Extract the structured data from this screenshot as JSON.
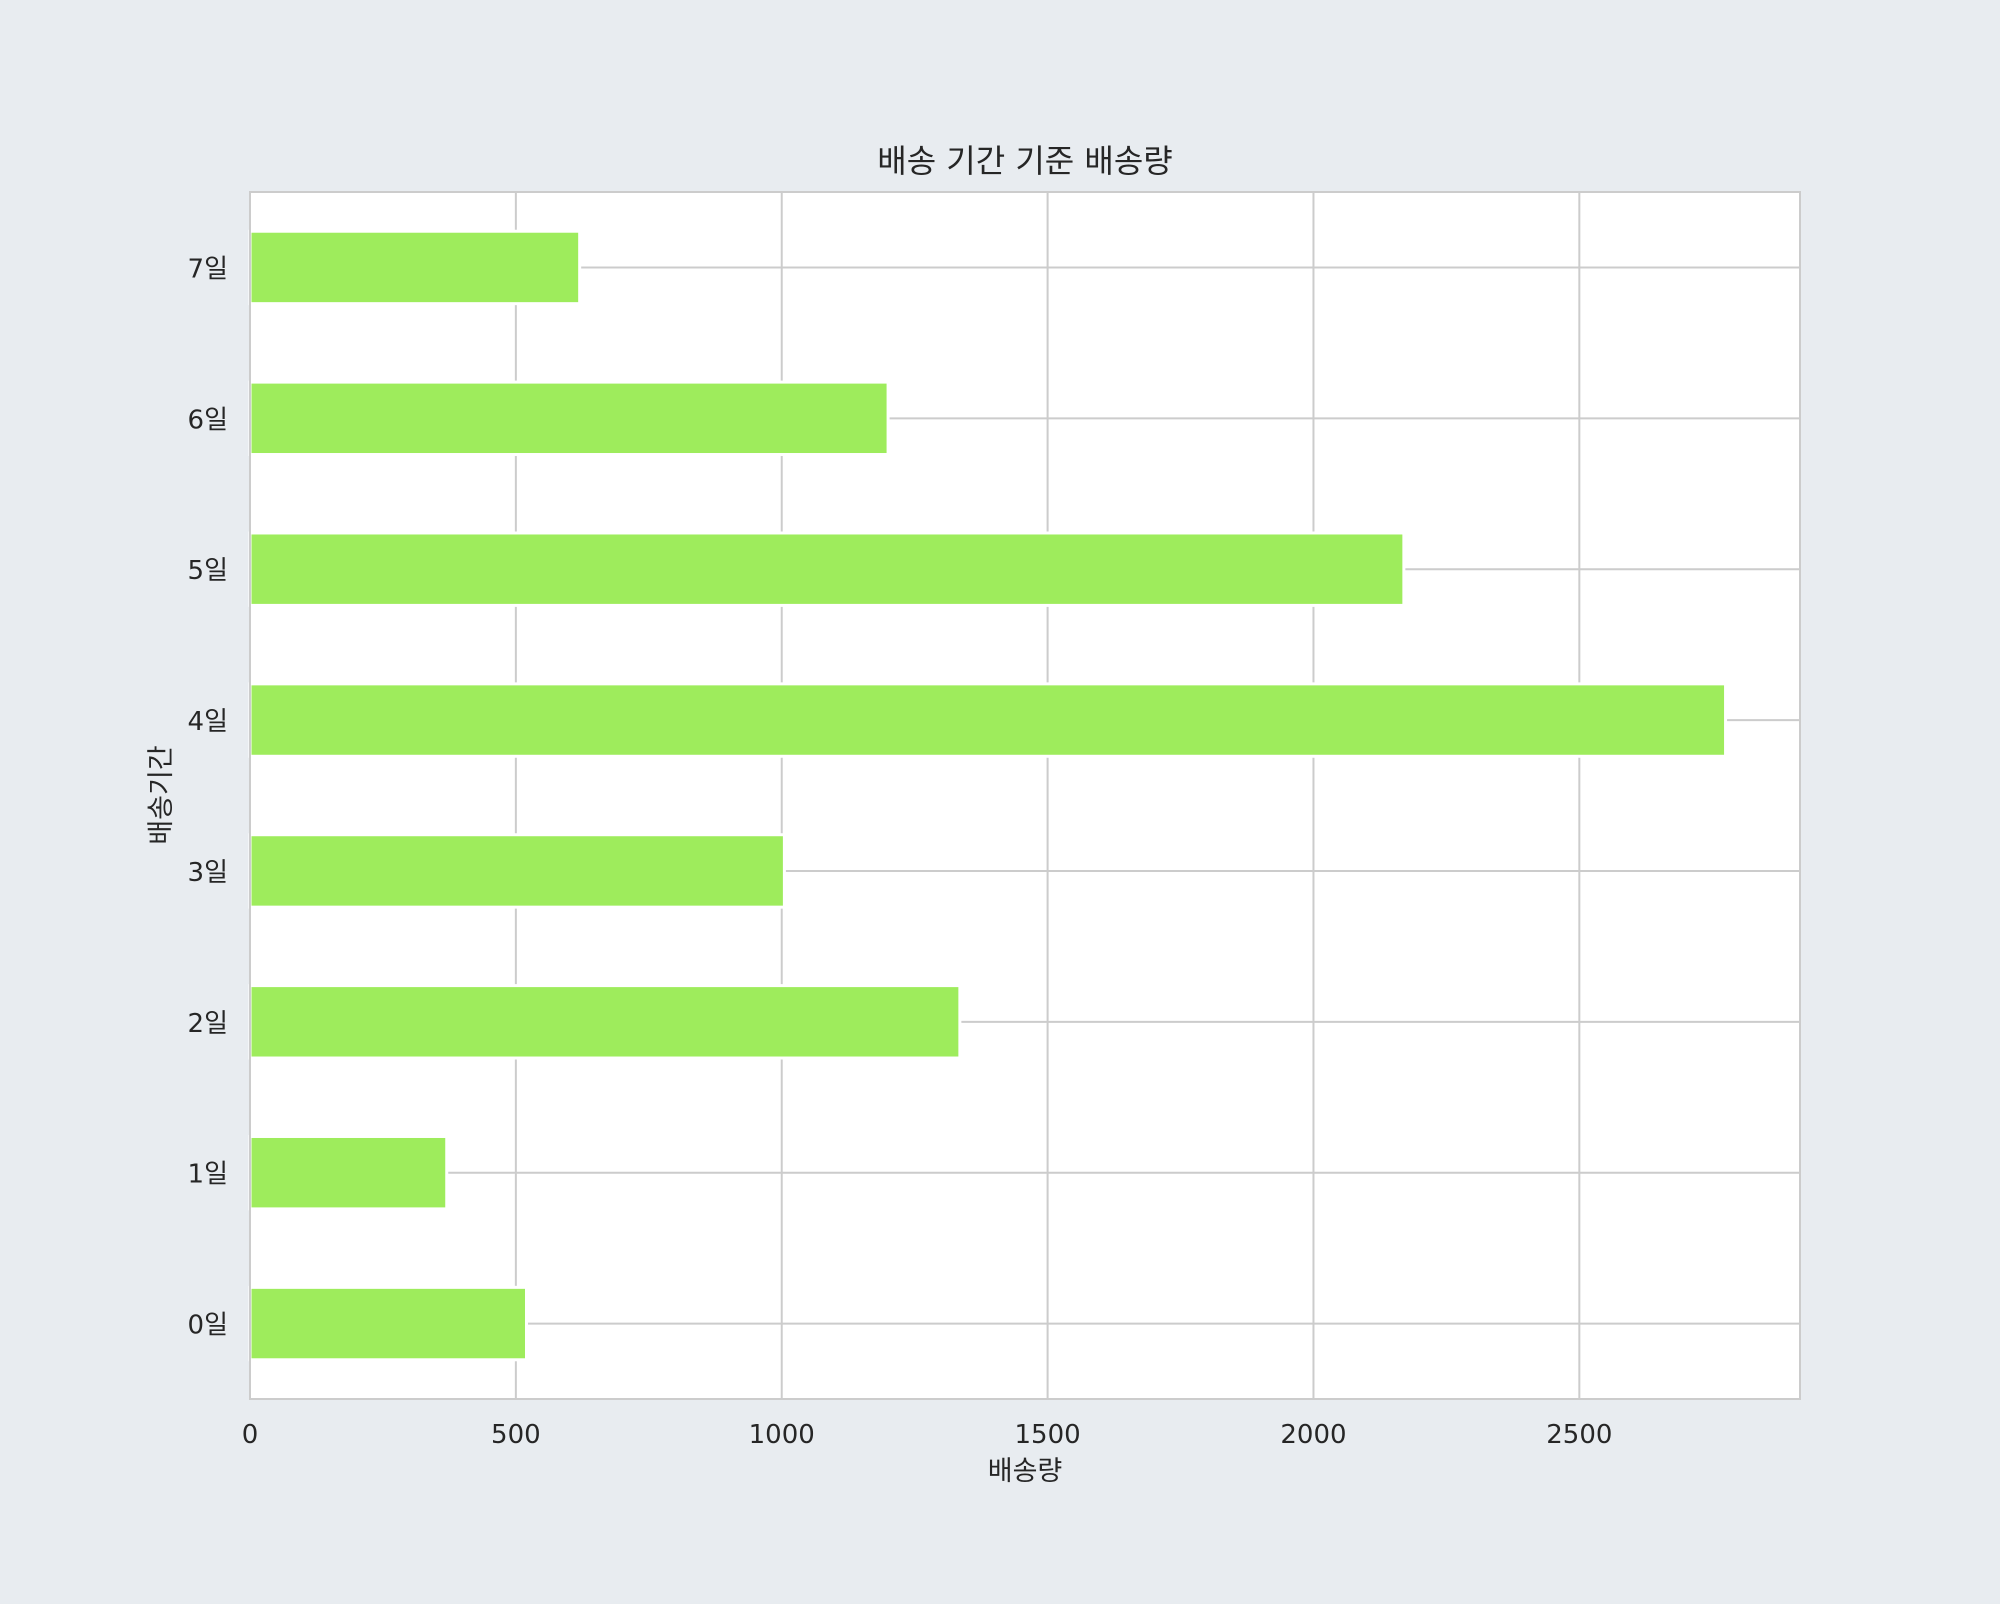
{
  "chart_data": {
    "type": "bar",
    "orientation": "horizontal",
    "title": "배송 기간 기준 배송량",
    "xlabel": "배송량",
    "ylabel": "배송기간",
    "categories": [
      "0일",
      "1일",
      "2일",
      "3일",
      "4일",
      "5일",
      "6일",
      "7일"
    ],
    "values": [
      520,
      370,
      1335,
      1005,
      2775,
      2170,
      1200,
      620
    ],
    "xlim": [
      0,
      2915
    ],
    "xticks": [
      0,
      500,
      1000,
      1500,
      2000,
      2500
    ],
    "grid": true,
    "colors": {
      "bar": "#9eec5c",
      "plot_background": "#ffffff",
      "page_background": "#e8ecf0",
      "grid": "#cccccc",
      "frame": "#cccccc"
    }
  }
}
